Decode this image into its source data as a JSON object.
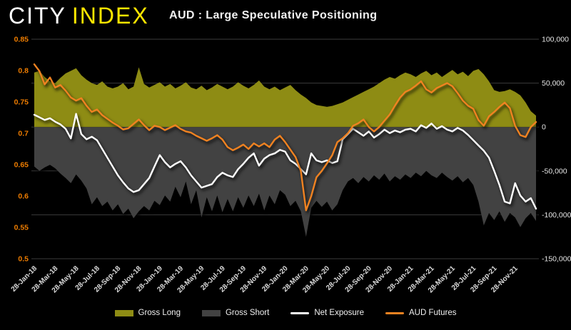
{
  "header": {
    "logo_city": "CITY",
    "logo_index": "INDEX",
    "title": "AUD : Large Speculative Positioning"
  },
  "colors": {
    "background": "#000000",
    "gross_long": "#8e8c14",
    "gross_short": "#424242",
    "net_exposure": "#ffffff",
    "aud_futures": "#f08221",
    "left_axis_labels": "#ef7d00",
    "right_axis_labels": "#e6e6e6",
    "x_axis_labels": "#d9d9d9",
    "gridline": "#3b3b3b",
    "logo_yellow": "#ffe600"
  },
  "legend": [
    {
      "label": "Gross Long",
      "swatch": "area",
      "color": "#8e8c14"
    },
    {
      "label": "Gross Short",
      "swatch": "area",
      "color": "#424242"
    },
    {
      "label": "Net Exposure",
      "swatch": "line",
      "color": "#ffffff"
    },
    {
      "label": "AUD Futures",
      "swatch": "line",
      "color": "#f08221"
    }
  ],
  "chart_data": {
    "type": "area",
    "subtype": "combo-area-line-dual-axis",
    "title": "AUD : Large Speculative Positioning",
    "grid": "horizontal-right-axis-only",
    "legend_position": "bottom-center",
    "left_axis": {
      "min": 0.5,
      "max": 0.85,
      "tick_labels": [
        "0.85",
        "0.8",
        "0.75",
        "0.7",
        "0.65",
        "0.6",
        "0.55",
        "0.5"
      ]
    },
    "right_axis": {
      "min": -150000,
      "max": 100000,
      "tick_labels": [
        "100,000",
        "50,000",
        "0",
        "-50,000",
        "-100,000",
        "-150,000"
      ]
    },
    "x_tick_labels": [
      "28-Jan-18",
      "28-Mar-18",
      "28-May-18",
      "28-Jul-18",
      "28-Sep-18",
      "28-Nov-18",
      "28-Jan-19",
      "28-Mar-19",
      "28-May-19",
      "28-Jul-19",
      "28-Sep-19",
      "28-Nov-19",
      "28-Jan-20",
      "28-Mar-20",
      "28-May-20",
      "28-Jul-20",
      "28-Sep-20",
      "28-Nov-20",
      "28-Jan-21",
      "28-Mar-21",
      "28-May-21",
      "28-Jul-21",
      "28-Sep-21",
      "28-Nov-21"
    ],
    "points_per_tick": 4,
    "sampling": "semi-monthly from 28-Jan-18 through late Jan-22, 97 points per series",
    "series": [
      {
        "name": "Gross Long",
        "type": "area",
        "axis": "right",
        "color": "#8e8c14",
        "values": [
          62000,
          64000,
          57000,
          52000,
          50000,
          56000,
          61000,
          64000,
          67000,
          59000,
          54000,
          50000,
          48000,
          52000,
          46000,
          44000,
          46000,
          50000,
          43000,
          46000,
          68000,
          49000,
          45000,
          48000,
          51000,
          46000,
          49000,
          44000,
          47000,
          51000,
          45000,
          43000,
          47000,
          42000,
          45000,
          49000,
          46000,
          43000,
          46000,
          51000,
          47000,
          44000,
          48000,
          53000,
          46000,
          43000,
          46000,
          42000,
          45000,
          48000,
          42000,
          37000,
          33000,
          28000,
          25000,
          24000,
          23000,
          24000,
          26000,
          28000,
          31000,
          34000,
          37000,
          40000,
          43000,
          46000,
          50000,
          54000,
          57000,
          55000,
          59000,
          62000,
          60000,
          57000,
          61000,
          64000,
          59000,
          62000,
          57000,
          61000,
          65000,
          60000,
          63000,
          58000,
          64000,
          66000,
          60000,
          52000,
          42000,
          40000,
          41000,
          43000,
          40000,
          36000,
          28000,
          18000,
          13000
        ]
      },
      {
        "name": "Gross Short",
        "type": "area",
        "axis": "right",
        "color": "#424242",
        "values": [
          -45000,
          -50000,
          -46000,
          -43000,
          -47000,
          -53000,
          -58000,
          -64000,
          -54000,
          -61000,
          -70000,
          -88000,
          -80000,
          -90000,
          -85000,
          -95000,
          -88000,
          -99000,
          -93000,
          -104000,
          -96000,
          -90000,
          -95000,
          -84000,
          -89000,
          -78000,
          -85000,
          -68000,
          -80000,
          -62000,
          -88000,
          -72000,
          -103000,
          -80000,
          -96000,
          -78000,
          -97000,
          -82000,
          -96000,
          -80000,
          -92000,
          -78000,
          -90000,
          -76000,
          -95000,
          -78000,
          -88000,
          -72000,
          -77000,
          -90000,
          -84000,
          -96000,
          -125000,
          -92000,
          -84000,
          -91000,
          -85000,
          -95000,
          -88000,
          -72000,
          -62000,
          -58000,
          -64000,
          -57000,
          -62000,
          -55000,
          -60000,
          -53000,
          -62000,
          -56000,
          -60000,
          -54000,
          -58000,
          -52000,
          -56000,
          -50000,
          -55000,
          -58000,
          -52000,
          -57000,
          -61000,
          -56000,
          -63000,
          -58000,
          -66000,
          -85000,
          -112000,
          -98000,
          -106000,
          -96000,
          -108000,
          -98000,
          -103000,
          -114000,
          -104000,
          -98000,
          -107000
        ]
      },
      {
        "name": "Net Exposure",
        "type": "line",
        "axis": "right",
        "color": "#ffffff",
        "values": [
          14000,
          11000,
          8000,
          10000,
          6000,
          3000,
          -2000,
          -13000,
          15000,
          -8000,
          -14000,
          -11000,
          -15000,
          -25000,
          -35000,
          -45000,
          -55000,
          -63000,
          -70000,
          -74000,
          -72000,
          -65000,
          -58000,
          -45000,
          -32000,
          -40000,
          -46000,
          -42000,
          -39000,
          -46000,
          -55000,
          -62000,
          -69000,
          -67000,
          -65000,
          -57000,
          -52000,
          -55000,
          -57000,
          -48000,
          -42000,
          -35000,
          -30000,
          -44000,
          -36000,
          -32000,
          -30000,
          -26000,
          -28000,
          -38000,
          -42000,
          -48000,
          -54000,
          -30000,
          -38000,
          -40000,
          -38000,
          -41000,
          -39000,
          -14000,
          -8000,
          -2000,
          -6000,
          -10000,
          -5000,
          -12000,
          -8000,
          -3000,
          -7000,
          -4000,
          -6000,
          -3000,
          -2000,
          -5000,
          2000,
          -1000,
          4000,
          -2000,
          1000,
          -3000,
          -5000,
          -1000,
          -4000,
          -9000,
          -15000,
          -21000,
          -27000,
          -35000,
          -50000,
          -66000,
          -85000,
          -87000,
          -64000,
          -78000,
          -85000,
          -81000,
          -93000
        ]
      },
      {
        "name": "AUD Futures",
        "type": "line",
        "axis": "left",
        "color": "#f08221",
        "values": [
          0.81,
          0.799,
          0.778,
          0.789,
          0.773,
          0.777,
          0.768,
          0.757,
          0.752,
          0.756,
          0.744,
          0.734,
          0.738,
          0.729,
          0.723,
          0.717,
          0.712,
          0.706,
          0.708,
          0.715,
          0.722,
          0.713,
          0.705,
          0.712,
          0.71,
          0.705,
          0.709,
          0.713,
          0.707,
          0.703,
          0.701,
          0.696,
          0.692,
          0.688,
          0.692,
          0.697,
          0.69,
          0.678,
          0.673,
          0.677,
          0.682,
          0.675,
          0.684,
          0.679,
          0.684,
          0.678,
          0.69,
          0.696,
          0.686,
          0.674,
          0.662,
          0.64,
          0.577,
          0.6,
          0.63,
          0.64,
          0.652,
          0.665,
          0.686,
          0.692,
          0.7,
          0.712,
          0.716,
          0.722,
          0.71,
          0.703,
          0.71,
          0.72,
          0.73,
          0.744,
          0.757,
          0.766,
          0.77,
          0.776,
          0.783,
          0.77,
          0.765,
          0.772,
          0.776,
          0.78,
          0.775,
          0.764,
          0.752,
          0.744,
          0.739,
          0.721,
          0.712,
          0.727,
          0.734,
          0.742,
          0.749,
          0.74,
          0.712,
          0.697,
          0.694,
          0.71,
          0.718
        ]
      }
    ]
  }
}
